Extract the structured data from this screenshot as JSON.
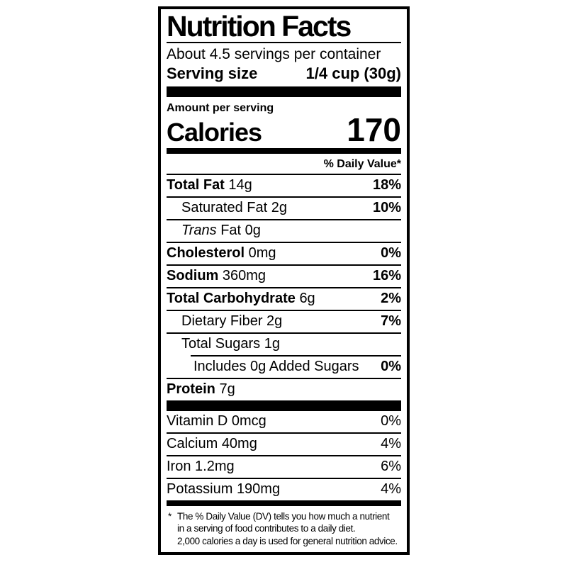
{
  "colors": {
    "text": "#000000",
    "background": "#ffffff",
    "border": "#000000"
  },
  "label": {
    "title": "Nutrition Facts",
    "servings_per_container": "About 4.5 servings per container",
    "serving_size": {
      "label": "Serving size",
      "value": "1/4 cup (30g)"
    },
    "amount_per_serving": "Amount per serving",
    "calories": {
      "label": "Calories",
      "value": "170"
    },
    "daily_value_header": "% Daily Value*",
    "nutrients": [
      {
        "name": "Total Fat",
        "amount": "14g",
        "daily_value": "18%"
      },
      {
        "name": "Saturated Fat",
        "amount": "2g",
        "daily_value": "10%"
      },
      {
        "name_italic": "Trans",
        "name": "Fat",
        "amount": "0g",
        "daily_value": ""
      },
      {
        "name": "Cholesterol",
        "amount": "0mg",
        "daily_value": "0%"
      },
      {
        "name": "Sodium",
        "amount": "360mg",
        "daily_value": "16%"
      },
      {
        "name": "Total Carbohydrate",
        "amount": "6g",
        "daily_value": "2%"
      },
      {
        "name": "Dietary Fiber",
        "amount": "2g",
        "daily_value": "7%"
      },
      {
        "name": "Total Sugars",
        "amount": "1g",
        "daily_value": ""
      },
      {
        "name": "Includes 0g Added Sugars",
        "amount": "",
        "daily_value": "0%"
      },
      {
        "name": "Protein",
        "amount": "7g",
        "daily_value": ""
      }
    ],
    "vitamins": [
      {
        "name": "Vitamin D",
        "amount": "0mcg",
        "daily_value": "0%"
      },
      {
        "name": "Calcium",
        "amount": "40mg",
        "daily_value": "4%"
      },
      {
        "name": "Iron",
        "amount": "1.2mg",
        "daily_value": "6%"
      },
      {
        "name": "Potassium",
        "amount": "190mg",
        "daily_value": "4%"
      }
    ],
    "footnote": {
      "star": "*",
      "lines": [
        "The % Daily Value (DV) tells you how much a nutrient",
        "in a serving of food contributes to a daily diet.",
        "2,000 calories a day is used for general nutrition advice."
      ]
    }
  }
}
